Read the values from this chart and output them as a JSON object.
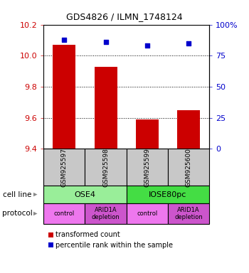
{
  "title": "GDS4826 / ILMN_1748124",
  "samples": [
    "GSM925597",
    "GSM925598",
    "GSM925599",
    "GSM925600"
  ],
  "bar_values": [
    10.07,
    9.93,
    9.59,
    9.65
  ],
  "scatter_values": [
    88,
    86,
    83,
    85
  ],
  "ylim_left": [
    9.4,
    10.2
  ],
  "ylim_right": [
    0,
    100
  ],
  "yticks_left": [
    9.4,
    9.6,
    9.8,
    10.0,
    10.2
  ],
  "yticks_right": [
    0,
    25,
    50,
    75,
    100
  ],
  "ytick_labels_right": [
    "0",
    "25",
    "50",
    "75",
    "100%"
  ],
  "bar_color": "#CC0000",
  "scatter_color": "#0000CC",
  "cell_line_groups": [
    {
      "label": "OSE4",
      "color": "#99EE99",
      "span": [
        0,
        2
      ]
    },
    {
      "label": "IOSE80pc",
      "color": "#44DD44",
      "span": [
        2,
        4
      ]
    }
  ],
  "protocol_groups": [
    {
      "label": "control",
      "color": "#EE77EE",
      "span": [
        0,
        1
      ]
    },
    {
      "label": "ARID1A\ndepletion",
      "color": "#CC55CC",
      "span": [
        1,
        2
      ]
    },
    {
      "label": "control",
      "color": "#EE77EE",
      "span": [
        2,
        3
      ]
    },
    {
      "label": "ARID1A\ndepletion",
      "color": "#CC55CC",
      "span": [
        3,
        4
      ]
    }
  ],
  "left_label_color": "#CC0000",
  "right_label_color": "#0000CC",
  "sample_box_color": "#C8C8C8",
  "cell_line_label": "cell line",
  "protocol_label": "protocol",
  "legend_red_label": "transformed count",
  "legend_blue_label": "percentile rank within the sample"
}
